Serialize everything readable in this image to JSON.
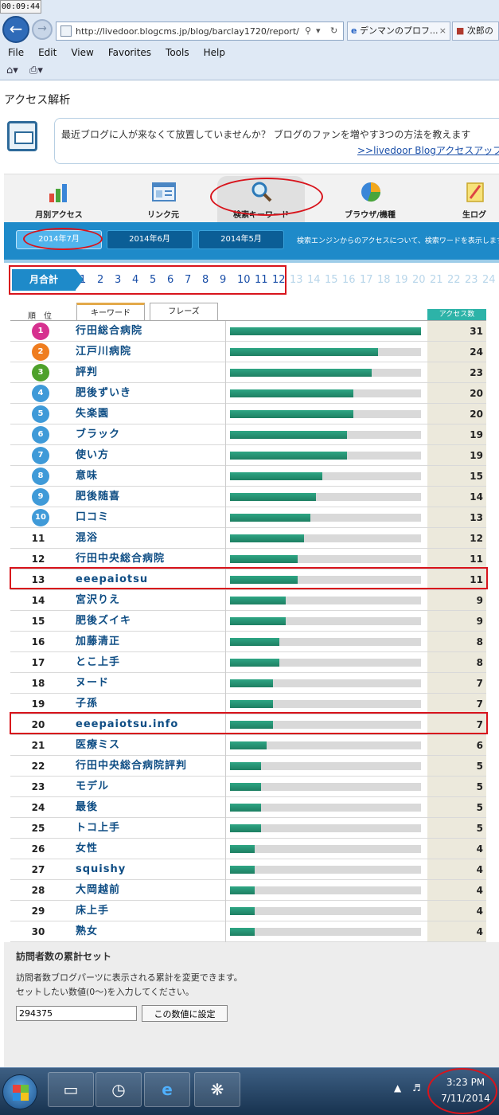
{
  "overlay": {
    "timer": "00:09:44"
  },
  "browser": {
    "url": "http://livedoor.blogcms.jp/blog/barclay1720/report/",
    "tabs": [
      {
        "label": "デンマンのプロフ..."
      },
      {
        "label": "次郎の"
      }
    ],
    "menu": [
      "File",
      "Edit",
      "View",
      "Favorites",
      "Tools",
      "Help"
    ]
  },
  "page": {
    "title": "アクセス解析",
    "promo_text": "最近ブログに人が来なくて放置していませんか？ ブログのファンを増やす3つの方法を教えます",
    "promo_link": ">>livedoor Blogアクセスアップ講",
    "top_tabs": [
      {
        "label": "月別アクセス",
        "icon": "bar-chart-icon"
      },
      {
        "label": "リンク元",
        "icon": "link-window-icon"
      },
      {
        "label": "検索キーワード",
        "icon": "magnifier-icon"
      },
      {
        "label": "ブラウザ/機種",
        "icon": "pie-chart-icon"
      },
      {
        "label": "生ログ",
        "icon": "notepad-icon"
      }
    ],
    "month_tabs": [
      "2014年7月",
      "2014年6月",
      "2014年5月"
    ],
    "band_note": "検索エンジンからのアクセスについて、検索ワードを表示します。",
    "pager": {
      "sum_label": "月合計",
      "days": [
        "1",
        "2",
        "3",
        "4",
        "5",
        "6",
        "7",
        "8",
        "9",
        "10",
        "11",
        "12",
        "13",
        "14",
        "15",
        "16",
        "17",
        "18",
        "19",
        "20",
        "21",
        "22",
        "23",
        "24"
      ],
      "active_through": 12
    },
    "table": {
      "rank_header": "順　位",
      "keyword_tab": "キーワード",
      "phrase_tab": "フレーズ",
      "count_header": "アクセス数",
      "max_count": 31,
      "rows": [
        {
          "rank": "1",
          "keyword": "行田総合病院",
          "count": 31
        },
        {
          "rank": "2",
          "keyword": "江戸川病院",
          "count": 24
        },
        {
          "rank": "3",
          "keyword": "評判",
          "count": 23
        },
        {
          "rank": "4",
          "keyword": "肥後ずいき",
          "count": 20
        },
        {
          "rank": "5",
          "keyword": "失楽園",
          "count": 20
        },
        {
          "rank": "6",
          "keyword": "ブラック",
          "count": 19
        },
        {
          "rank": "7",
          "keyword": "使い方",
          "count": 19
        },
        {
          "rank": "8",
          "keyword": "意味",
          "count": 15
        },
        {
          "rank": "9",
          "keyword": "肥後随喜",
          "count": 14
        },
        {
          "rank": "10",
          "keyword": "口コミ",
          "count": 13
        },
        {
          "rank": "11",
          "keyword": "混浴",
          "count": 12
        },
        {
          "rank": "12",
          "keyword": "行田中央総合病院",
          "count": 11
        },
        {
          "rank": "13",
          "keyword": "eeepaiotsu",
          "count": 11
        },
        {
          "rank": "14",
          "keyword": "宮沢りえ",
          "count": 9
        },
        {
          "rank": "15",
          "keyword": "肥後ズイキ",
          "count": 9
        },
        {
          "rank": "16",
          "keyword": "加藤清正",
          "count": 8
        },
        {
          "rank": "17",
          "keyword": "とこ上手",
          "count": 8
        },
        {
          "rank": "18",
          "keyword": "ヌード",
          "count": 7
        },
        {
          "rank": "19",
          "keyword": "子孫",
          "count": 7
        },
        {
          "rank": "20",
          "keyword": "eeepaiotsu.info",
          "count": 7
        },
        {
          "rank": "21",
          "keyword": "医療ミス",
          "count": 6
        },
        {
          "rank": "22",
          "keyword": "行田中央総合病院評判",
          "count": 5
        },
        {
          "rank": "23",
          "keyword": "モデル",
          "count": 5
        },
        {
          "rank": "24",
          "keyword": "最後",
          "count": 5
        },
        {
          "rank": "25",
          "keyword": "トコ上手",
          "count": 5
        },
        {
          "rank": "26",
          "keyword": "女性",
          "count": 4
        },
        {
          "rank": "27",
          "keyword": "squishy",
          "count": 4
        },
        {
          "rank": "28",
          "keyword": "大岡越前",
          "count": 4
        },
        {
          "rank": "29",
          "keyword": "床上手",
          "count": 4
        },
        {
          "rank": "30",
          "keyword": "熟女",
          "count": 4
        }
      ],
      "badge_colors": [
        "#d6318f",
        "#ef7d1f",
        "#4ea12b",
        "#3f9ad8",
        "#3f9ad8",
        "#3f9ad8",
        "#3f9ad8",
        "#3f9ad8",
        "#3f9ad8",
        "#3f9ad8"
      ]
    },
    "reset": {
      "title": "訪問者数の累計セット",
      "desc1": "訪問者数ブログパーツに表示される累計を変更できます。",
      "desc2": "セットしたい数値(0〜)を入力してください。",
      "value": "294375",
      "button": "この数値に設定"
    }
  },
  "taskbar": {
    "time": "3:23 PM",
    "date": "7/11/2014"
  },
  "colors": {
    "accent": "#1e8ac9",
    "annotation": "#d8141c",
    "bar": "#2ea684"
  }
}
